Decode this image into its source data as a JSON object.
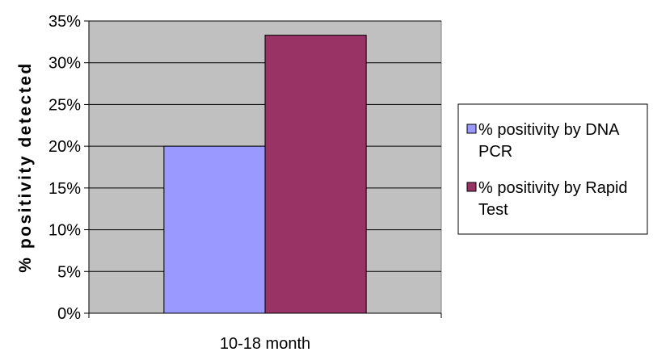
{
  "chart_data": {
    "type": "bar",
    "title": "",
    "categories": [
      "10-18 month"
    ],
    "series": [
      {
        "name": "% positivity by DNA PCR",
        "values": [
          20
        ],
        "color": "#9999ff"
      },
      {
        "name": "% positivity by Rapid Test",
        "values": [
          33.3
        ],
        "color": "#993366"
      }
    ],
    "xlabel": "",
    "ylabel": "% positivity detected",
    "ylim": [
      0,
      35
    ],
    "yticks": [
      {
        "value": 0,
        "label": "0%"
      },
      {
        "value": 5,
        "label": "5%"
      },
      {
        "value": 10,
        "label": "10%"
      },
      {
        "value": 15,
        "label": "15%"
      },
      {
        "value": 20,
        "label": "20%"
      },
      {
        "value": 25,
        "label": "25%"
      },
      {
        "value": 30,
        "label": "30%"
      },
      {
        "value": 35,
        "label": "35%"
      }
    ],
    "legend_lines": [
      [
        "% positivity by DNA",
        "PCR"
      ],
      [
        "% positivity by Rapid",
        "Test"
      ]
    ],
    "grid": true,
    "legend_position": "right",
    "plot_background": "#c0c0c0"
  }
}
